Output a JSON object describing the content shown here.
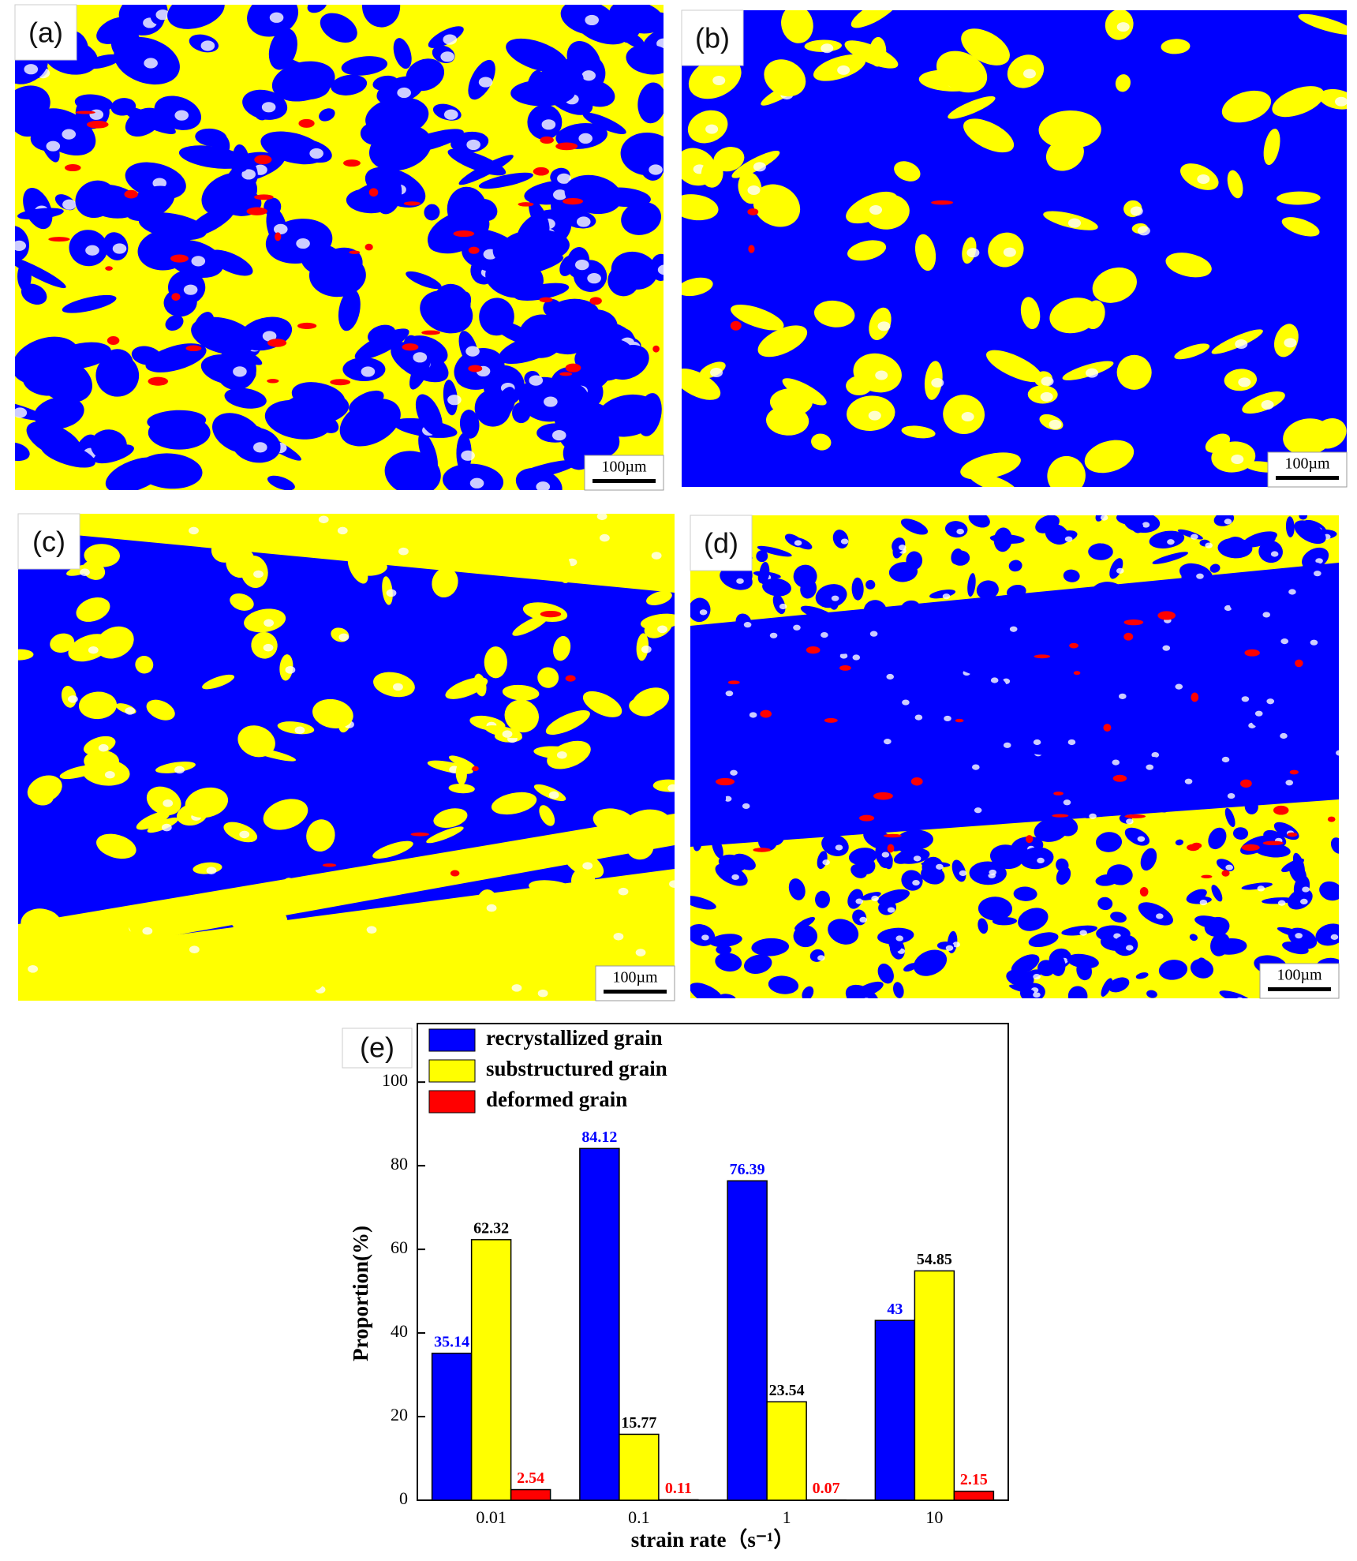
{
  "panels": [
    {
      "label": "(a)",
      "scale_bar": "100µm"
    },
    {
      "label": "(b)",
      "scale_bar": "100µm"
    },
    {
      "label": "(c)",
      "scale_bar": "100µm"
    },
    {
      "label": "(d)",
      "scale_bar": "100µm"
    }
  ],
  "chart_data": {
    "type": "bar",
    "label": "(e)",
    "x_label": "strain rate（s⁻¹）",
    "y_label": "Proportion(%)",
    "categories": [
      "0.01",
      "0.1",
      "1",
      "10"
    ],
    "series": [
      {
        "name": "recrystallized grain",
        "color": "#0000ff",
        "label_color": "#0000ff",
        "values": [
          35.14,
          84.12,
          76.39,
          43
        ]
      },
      {
        "name": "substructured grain",
        "color": "#ffff00",
        "label_color": "#000000",
        "values": [
          62.32,
          15.77,
          23.54,
          54.85
        ]
      },
      {
        "name": "deformed grain",
        "color": "#ff0000",
        "label_color": "#ff0000",
        "values": [
          2.54,
          0.11,
          0.07,
          2.15
        ]
      }
    ],
    "ylim": [
      0,
      114
    ],
    "yticks": [
      0,
      20,
      40,
      60,
      80,
      100
    ],
    "legend": "top-left"
  }
}
